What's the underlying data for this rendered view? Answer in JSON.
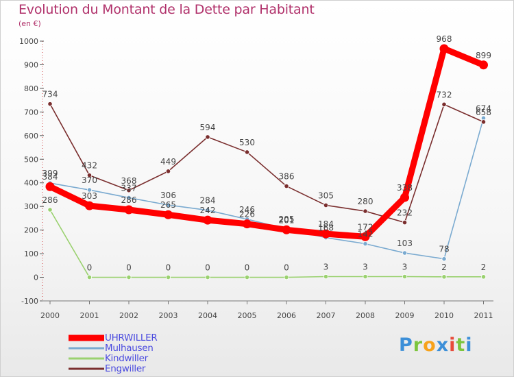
{
  "header": {
    "title": "Evolution du Montant de la Dette par Habitant",
    "unit": "(en €)"
  },
  "logo": {
    "text": "Proxiti",
    "letters": [
      "P",
      "r",
      "o",
      "x",
      "i",
      "t",
      "i"
    ],
    "colors": [
      "#3c8fd8",
      "#7cc53d",
      "#f7a21b",
      "#3c8fd8",
      "#e84b3a",
      "#7cc53d",
      "#3c8fd8"
    ]
  },
  "chart_data": {
    "type": "line",
    "title": "Evolution du Montant de la Dette par Habitant",
    "subtitle": "(en €)",
    "xlabel": "",
    "ylabel": "",
    "categories": [
      "2000",
      "2001",
      "2002",
      "2003",
      "2004",
      "2005",
      "2006",
      "2007",
      "2008",
      "2009",
      "2010",
      "2011"
    ],
    "ylim": [
      -100,
      1000
    ],
    "yticks": [
      -100,
      0,
      100,
      200,
      300,
      400,
      500,
      600,
      700,
      800,
      900,
      1000
    ],
    "grid": false,
    "legend_position": "bottom-left",
    "series": [
      {
        "name": "UHRWILLER",
        "color": "#ff0000",
        "width": "thick",
        "values": [
          384,
          303,
          286,
          265,
          242,
          226,
          201,
          184,
          172,
          338,
          968,
          899
        ],
        "labels": [
          "384",
          "303",
          "286",
          "265",
          "242",
          "226",
          "201",
          "184",
          "172",
          "338",
          "968",
          "899"
        ]
      },
      {
        "name": "Mulhausen",
        "color": "#7aaad0",
        "width": "thin",
        "values": [
          399,
          370,
          337,
          306,
          284,
          246,
          205,
          168,
          142,
          103,
          78,
          674
        ],
        "labels": [
          "399",
          "370",
          "337",
          "306",
          "284",
          "246",
          "205",
          "168",
          "142",
          "103",
          "78",
          "674"
        ]
      },
      {
        "name": "Kindwiller",
        "color": "#9ad16f",
        "width": "thin",
        "values": [
          286,
          0,
          0,
          0,
          0,
          0,
          0,
          3,
          3,
          3,
          2,
          2
        ],
        "labels": [
          "286",
          "0",
          "0",
          "0",
          "0",
          "0",
          "0",
          "3",
          "3",
          "3",
          "2",
          "2"
        ]
      },
      {
        "name": "Engwiller",
        "color": "#7a2e2e",
        "width": "thin",
        "values": [
          734,
          432,
          368,
          449,
          594,
          530,
          386,
          305,
          280,
          232,
          732,
          658
        ],
        "labels": [
          "734",
          "432",
          "368",
          "449",
          "594",
          "530",
          "386",
          "305",
          "280",
          "232",
          "732",
          "658"
        ]
      }
    ]
  }
}
